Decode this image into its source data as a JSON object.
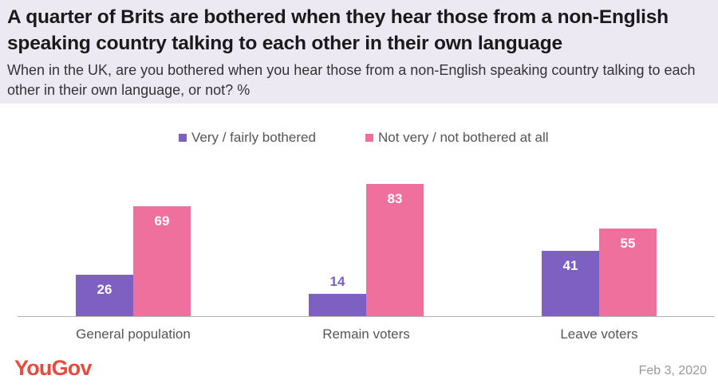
{
  "title": "A quarter of Brits are bothered when they hear those from a non-English speaking country talking to each other in their own language",
  "subtitle": "When in the UK, are you bothered when you hear those from a non-English speaking country talking to each other in their own language, or not? %",
  "footer": {
    "logo": "YouGov",
    "date": "Feb 3, 2020"
  },
  "colors": {
    "series1": "#7d60c2",
    "series2": "#f0709d",
    "header_bg": "#ece9f3",
    "logo": "#e84a3d"
  },
  "chart_data": {
    "type": "bar",
    "categories": [
      "General population",
      "Remain voters",
      "Leave voters"
    ],
    "series": [
      {
        "name": "Very / fairly bothered",
        "values": [
          26,
          14,
          41
        ],
        "color": "#7d60c2"
      },
      {
        "name": "Not very / not bothered at all",
        "values": [
          69,
          83,
          55
        ],
        "color": "#f0709d"
      }
    ],
    "ylim": [
      0,
      100
    ],
    "grid": false,
    "legend_position": "top"
  }
}
